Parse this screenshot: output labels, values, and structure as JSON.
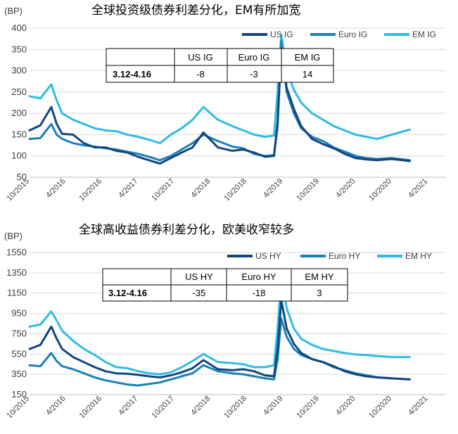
{
  "colors": {
    "us": "#12467f",
    "euro": "#1c7fb5",
    "em": "#2fbce4",
    "grid": "#d9d9d9"
  },
  "chart_data": [
    {
      "type": "line",
      "title": "全球投资级债券利差分化，EM有所加宽",
      "unit_label": "(BP)",
      "ylim": [
        50,
        400
      ],
      "yticks": [
        "400",
        "350",
        "300",
        "250",
        "200",
        "150",
        "100",
        "50"
      ],
      "x_labels": [
        "10/2015",
        "4/2016",
        "10/2016",
        "4/2017",
        "10/2017",
        "4/2018",
        "10/2018",
        "4/2019",
        "10/2019",
        "4/2020",
        "10/2020",
        "4/2021"
      ],
      "legend_position": "top-right",
      "legend": [
        "US IG",
        "Euro IG",
        "EM IG"
      ],
      "table": {
        "headers": [
          "US IG",
          "Euro IG",
          "EM IG"
        ],
        "row_label": "3.12-4.16",
        "values": [
          "-8",
          "-3",
          "14"
        ]
      },
      "series": [
        {
          "name": "US IG",
          "x": [
            0,
            0.3,
            0.6,
            0.75,
            0.9,
            1.2,
            1.5,
            1.8,
            2.1,
            2.4,
            2.7,
            3.0,
            3.3,
            3.6,
            3.9,
            4.2,
            4.5,
            4.8,
            5.2,
            5.6,
            5.9,
            6.2,
            6.5,
            6.75,
            6.85,
            6.95,
            7.1,
            7.3,
            7.5,
            7.8,
            8.1,
            8.4,
            8.7,
            9.0,
            9.3,
            9.6,
            10.0,
            10.5
          ],
          "values": [
            160,
            172,
            215,
            175,
            152,
            150,
            130,
            120,
            120,
            112,
            108,
            98,
            90,
            82,
            95,
            108,
            120,
            155,
            120,
            112,
            115,
            108,
            98,
            100,
            180,
            350,
            260,
            210,
            170,
            140,
            128,
            118,
            105,
            95,
            92,
            90,
            93,
            88
          ]
        },
        {
          "name": "Euro IG",
          "x": [
            0,
            0.3,
            0.6,
            0.75,
            0.9,
            1.2,
            1.5,
            1.8,
            2.1,
            2.4,
            2.7,
            3.0,
            3.3,
            3.6,
            3.9,
            4.2,
            4.5,
            4.8,
            5.2,
            5.6,
            5.9,
            6.2,
            6.5,
            6.75,
            6.85,
            6.95,
            7.1,
            7.3,
            7.5,
            7.8,
            8.1,
            8.4,
            8.7,
            9.0,
            9.3,
            9.6,
            10.0,
            10.5
          ],
          "values": [
            140,
            142,
            175,
            150,
            140,
            130,
            125,
            122,
            118,
            115,
            110,
            105,
            98,
            90,
            100,
            115,
            130,
            150,
            135,
            122,
            118,
            105,
            100,
            102,
            170,
            370,
            250,
            200,
            165,
            145,
            135,
            120,
            110,
            100,
            95,
            93,
            95,
            90
          ]
        },
        {
          "name": "EM IG",
          "x": [
            0,
            0.3,
            0.6,
            0.75,
            0.9,
            1.2,
            1.5,
            1.8,
            2.1,
            2.4,
            2.7,
            3.0,
            3.3,
            3.6,
            3.9,
            4.2,
            4.5,
            4.8,
            5.2,
            5.6,
            5.9,
            6.2,
            6.5,
            6.75,
            6.85,
            6.95,
            7.1,
            7.3,
            7.5,
            7.8,
            8.1,
            8.4,
            8.7,
            9.0,
            9.3,
            9.6,
            10.0,
            10.5
          ],
          "values": [
            240,
            235,
            268,
            230,
            200,
            185,
            175,
            165,
            160,
            158,
            150,
            145,
            138,
            130,
            150,
            165,
            185,
            215,
            185,
            170,
            160,
            150,
            145,
            148,
            250,
            385,
            300,
            255,
            225,
            200,
            185,
            170,
            160,
            150,
            145,
            140,
            150,
            162
          ]
        }
      ]
    },
    {
      "type": "line",
      "title": "全球高收益债券利差分化，欧美收窄较多",
      "unit_label": "(BP)",
      "ylim": [
        150,
        1550
      ],
      "yticks": [
        "1550",
        "1350",
        "1150",
        "950",
        "750",
        "550",
        "350",
        "150"
      ],
      "x_labels": [
        "10/2015",
        "4/2016",
        "10/2016",
        "4/2017",
        "10/2017",
        "4/2018",
        "10/2018",
        "4/2019",
        "10/2019",
        "4/2020",
        "10/2020",
        "4/2021"
      ],
      "legend_position": "top-right",
      "legend": [
        "US HY",
        "Euro HY",
        "EM HY"
      ],
      "table": {
        "headers": [
          "US HY",
          "Euro HY",
          "EM HY"
        ],
        "row_label": "3.12-4.16",
        "values": [
          "-35",
          "-18",
          "3"
        ]
      },
      "series": [
        {
          "name": "US HY",
          "x": [
            0,
            0.3,
            0.6,
            0.75,
            0.9,
            1.2,
            1.5,
            1.8,
            2.1,
            2.4,
            2.7,
            3.0,
            3.3,
            3.6,
            3.9,
            4.2,
            4.5,
            4.8,
            5.2,
            5.6,
            5.9,
            6.2,
            6.5,
            6.75,
            6.85,
            6.95,
            7.1,
            7.3,
            7.5,
            7.8,
            8.1,
            8.4,
            8.7,
            9.0,
            9.3,
            9.6,
            10.0,
            10.5
          ],
          "values": [
            600,
            640,
            820,
            700,
            600,
            520,
            470,
            420,
            380,
            360,
            355,
            345,
            330,
            320,
            340,
            370,
            410,
            490,
            400,
            390,
            400,
            380,
            340,
            330,
            600,
            1080,
            800,
            650,
            560,
            500,
            470,
            430,
            380,
            350,
            330,
            320,
            310,
            300
          ]
        },
        {
          "name": "Euro HY",
          "x": [
            0,
            0.3,
            0.6,
            0.75,
            0.9,
            1.2,
            1.5,
            1.8,
            2.1,
            2.4,
            2.7,
            3.0,
            3.3,
            3.6,
            3.9,
            4.2,
            4.5,
            4.8,
            5.2,
            5.6,
            5.9,
            6.2,
            6.5,
            6.75,
            6.85,
            6.95,
            7.1,
            7.3,
            7.5,
            7.8,
            8.1,
            8.4,
            8.7,
            9.0,
            9.3,
            9.6,
            10.0,
            10.5
          ],
          "values": [
            440,
            430,
            560,
            480,
            430,
            400,
            360,
            320,
            290,
            270,
            250,
            240,
            255,
            270,
            300,
            330,
            360,
            440,
            380,
            360,
            350,
            330,
            310,
            300,
            500,
            900,
            720,
            600,
            540,
            500,
            470,
            420,
            390,
            360,
            340,
            320,
            310,
            300
          ]
        },
        {
          "name": "EM HY",
          "x": [
            0,
            0.3,
            0.6,
            0.75,
            0.9,
            1.2,
            1.5,
            1.8,
            2.1,
            2.4,
            2.7,
            3.0,
            3.3,
            3.6,
            3.9,
            4.2,
            4.5,
            4.8,
            5.2,
            5.6,
            5.9,
            6.2,
            6.5,
            6.75,
            6.85,
            6.95,
            7.1,
            7.3,
            7.5,
            7.8,
            8.1,
            8.4,
            8.7,
            9.0,
            9.3,
            9.6,
            10.0,
            10.5
          ],
          "values": [
            820,
            840,
            970,
            880,
            780,
            680,
            600,
            540,
            470,
            420,
            410,
            380,
            360,
            350,
            370,
            420,
            480,
            550,
            470,
            460,
            450,
            420,
            420,
            440,
            800,
            1300,
            1000,
            800,
            700,
            640,
            600,
            580,
            560,
            545,
            540,
            530,
            520,
            520
          ]
        }
      ]
    }
  ]
}
